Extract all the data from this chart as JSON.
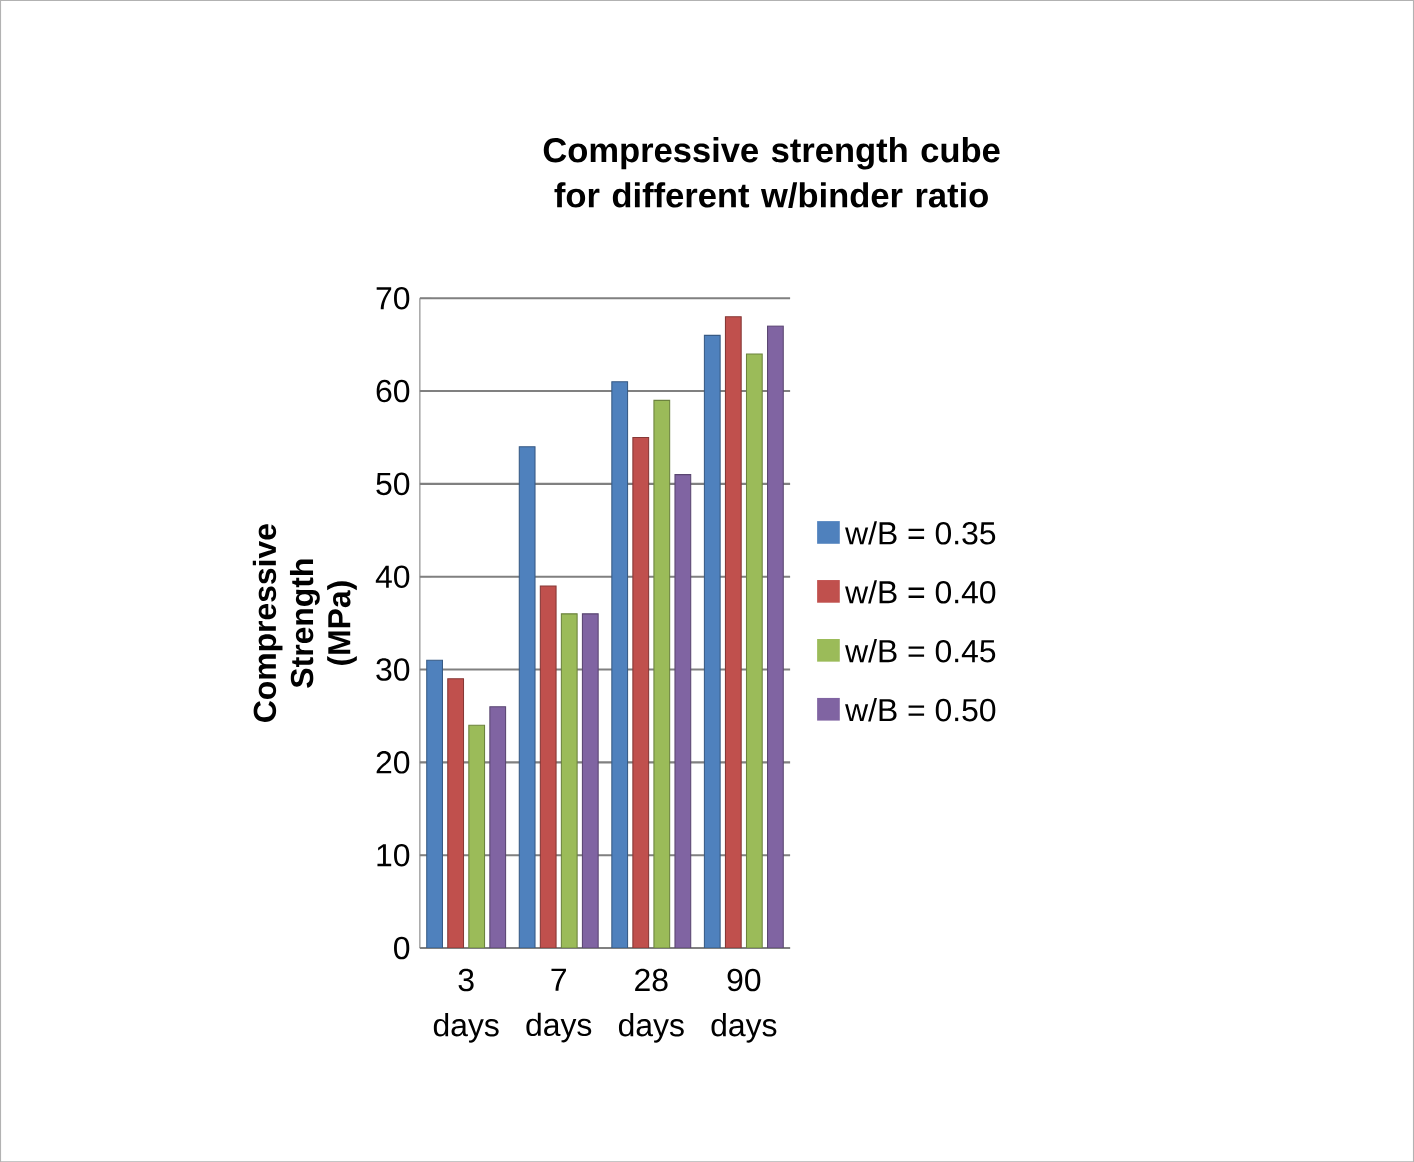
{
  "chart_data": {
    "type": "bar",
    "title": "Compressive strength cube for different w/binder ratio",
    "ylabel": "Compressive Strength (MPa)",
    "categories": [
      "3 days",
      "7 days",
      "28 days",
      "90 days"
    ],
    "series": [
      {
        "name": "w/B = 0.35",
        "color": "#4f81bd",
        "values": [
          31,
          54,
          61,
          66
        ]
      },
      {
        "name": "w/B = 0.40",
        "color": "#c0504d",
        "values": [
          29,
          39,
          55,
          68
        ]
      },
      {
        "name": "w/B = 0.45",
        "color": "#9bbb59",
        "values": [
          24,
          36,
          59,
          64
        ]
      },
      {
        "name": "w/B = 0.50",
        "color": "#8064a2",
        "values": [
          26,
          36,
          51,
          67
        ]
      }
    ],
    "ylim": [
      0,
      70
    ],
    "yticks": [
      0,
      10,
      20,
      30,
      40,
      50,
      60,
      70
    ],
    "grid": "y",
    "legend": "right"
  }
}
